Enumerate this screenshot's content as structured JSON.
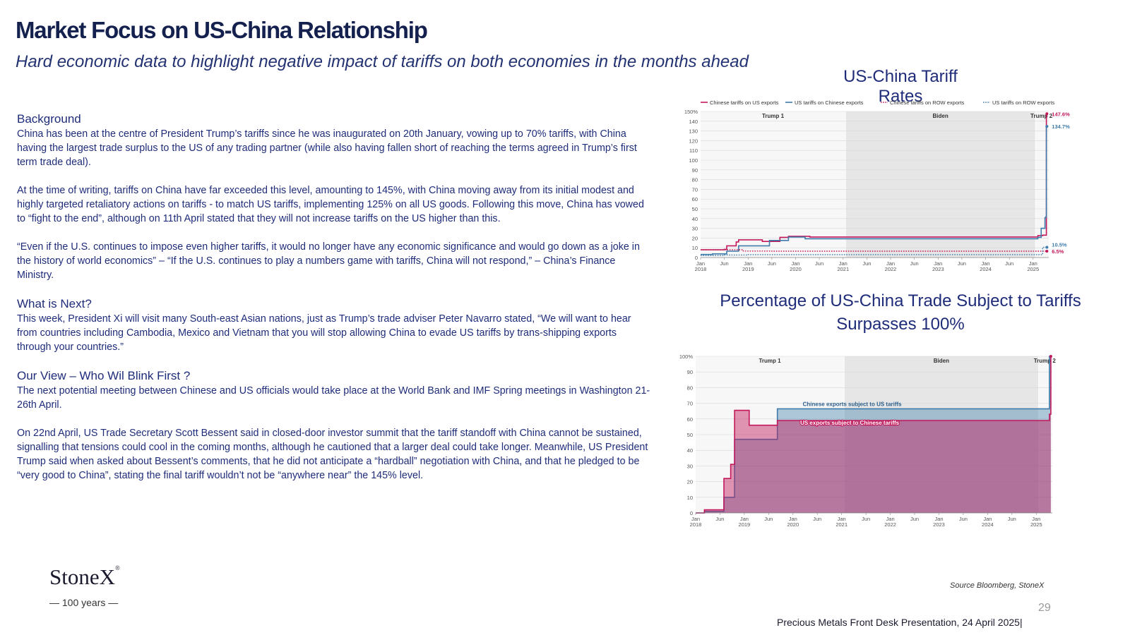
{
  "title": "Market Focus on US-China Relationship",
  "subtitle": "Hard economic data to highlight negative impact of tariffs on both economies in the months ahead",
  "sections": {
    "background_head": "Background",
    "background_p1": "China has been at the centre of President Trump’s tariffs since he was inaugurated on 20th January, vowing up to 70% tariffs, with China having the largest trade surplus to the US of any trading partner (while also having fallen short of reaching the terms agreed in Trump’s first term trade deal).",
    "background_p2": "At the time of writing, tariffs on China have far exceeded this level, amounting to 145%, with China moving away from its initial modest and highly targeted retaliatory actions on tariffs -  to match US tariffs, implementing 125% on all US goods. Following this move, China has vowed to “fight to the end”, although on 11th April stated that they will not increase tariffs on the US  higher than this.",
    "background_p3": "“Even if the U.S. continues to impose even higher tariffs, it would no longer have any economic significance and would go down as a joke in the history of world economics” – “If the U.S. continues to play a numbers game with tariffs, China will not respond,” – China’s Finance Ministry.",
    "next_head": "What is Next?",
    "next_p1": "This week, President Xi will visit many South-east Asian nations, just as Trump’s trade adviser Peter Navarro stated, “We will want to hear from countries including Cambodia, Mexico and Vietnam that you will stop allowing China to evade US tariffs by trans-shipping exports through your countries.”",
    "view_head": "Our View – Who Wil Blink First ?",
    "view_p1": "The next potential meeting between Chinese and US officials would take place at the World Bank and IMF Spring meetings in Washington 21-26th April.",
    "view_p2": "On 22nd April, US Trade Secretary Scott Bessent said in closed-door investor summit that the tariff standoff with China cannot be sustained, signalling that tensions could cool in the coming months, although he cautioned that a larger deal could take longer. Meanwhile, US President Trump said when asked about Bessent’s comments, that he did not anticipate a “hardball” negotiation with China, and that he pledged to be “very good to China”, stating the final tariff wouldn’t not be “anywhere near” the 145% level."
  },
  "chart1_title": "US-China Tariff Rates",
  "chart2_title": "Percentage of US-China Trade Subject to Tariffs Surpasses 100%",
  "logo": {
    "name": "StoneX",
    "mark": "®",
    "years": "— 100 years —"
  },
  "source": "Source Bloomberg, StoneX",
  "page_number": "29",
  "footer": "Precious Metals Front Desk Presentation, 24 April 2025|",
  "colors": {
    "china": "#c2185b",
    "us": "#3f7cab",
    "navy": "#1f2c7a",
    "shade": "#e6e6e6"
  },
  "chart_data": [
    {
      "type": "line",
      "x_ticks": [
        "Jan 2018",
        "Jun",
        "Jan 2019",
        "Jun",
        "Jan 2020",
        "Jun",
        "Jan 2021",
        "Jun",
        "Jan 2022",
        "Jun",
        "Jan 2023",
        "Jun",
        "Jan 2024",
        "Jun",
        "Jan 2025"
      ],
      "y_ticks": [
        "0",
        "10",
        "20",
        "30",
        "40",
        "50",
        "60",
        "70",
        "80",
        "90",
        "100",
        "110",
        "120",
        "130",
        "140",
        "150%"
      ],
      "ylim": [
        0,
        150
      ],
      "periods": [
        {
          "label": "Trump 1",
          "start": 2018.0,
          "end": 2021.05,
          "shaded": false
        },
        {
          "label": "Biden",
          "start": 2021.05,
          "end": 2025.05,
          "shaded": true
        },
        {
          "label": "Trump 2",
          "start": 2025.05,
          "end": 2025.3,
          "shaded": false
        }
      ],
      "end_labels": [
        {
          "text": "147.6%",
          "value": 147.6,
          "color": "#c2185b"
        },
        {
          "text": "134.7%",
          "value": 134.7,
          "color": "#3f7cab"
        },
        {
          "text": "10.5%",
          "value": 10.5,
          "color": "#3f7cab"
        },
        {
          "text": "6.5%",
          "value": 6.5,
          "color": "#c2185b"
        }
      ],
      "series": [
        {
          "name": "Chinese tariffs on US exports",
          "style": "solid",
          "color": "#c2185b",
          "x": [
            2018.0,
            2018.25,
            2018.5,
            2018.55,
            2018.65,
            2018.75,
            2018.8,
            2019.0,
            2019.3,
            2019.45,
            2019.67,
            2019.85,
            2020.1,
            2020.3,
            2025.05,
            2025.1,
            2025.2,
            2025.27,
            2025.28,
            2025.3
          ],
          "y": [
            8.0,
            8.0,
            8.4,
            12.0,
            12.0,
            16.0,
            18.2,
            18.2,
            16.5,
            16.5,
            20.7,
            21.8,
            21.8,
            21.1,
            21.1,
            22.5,
            23.0,
            23.0,
            147.6,
            147.6
          ]
        },
        {
          "name": "US tariffs on Chinese exports",
          "style": "solid",
          "color": "#3f7cab",
          "x": [
            2018.0,
            2018.25,
            2018.5,
            2018.55,
            2018.72,
            2018.8,
            2019.0,
            2019.4,
            2019.45,
            2019.67,
            2019.85,
            2020.1,
            2020.2,
            2025.05,
            2025.1,
            2025.17,
            2025.2,
            2025.25,
            2025.27,
            2025.28,
            2025.3
          ],
          "y": [
            3.1,
            3.8,
            3.8,
            6.5,
            6.5,
            12.0,
            12.0,
            12.0,
            17.5,
            17.5,
            21.0,
            21.0,
            19.3,
            19.3,
            20.7,
            30.0,
            30.0,
            41.0,
            42.0,
            134.7,
            134.7
          ]
        },
        {
          "name": "Chinese tariffs on ROW exports",
          "style": "dotted",
          "color": "#c2185b",
          "x": [
            2018.0,
            2018.5,
            2018.9,
            2019.5,
            2020.0,
            2025.3
          ],
          "y": [
            8.0,
            8.0,
            6.7,
            6.5,
            6.5,
            6.5
          ]
        },
        {
          "name": "US tariffs on ROW exports",
          "style": "dotted",
          "color": "#3f7cab",
          "x": [
            2018.0,
            2018.3,
            2018.5,
            2019.0,
            2020.0,
            2025.0,
            2025.2,
            2025.3
          ],
          "y": [
            2.2,
            2.2,
            2.6,
            3.0,
            3.0,
            3.0,
            10.5,
            10.5
          ]
        }
      ]
    },
    {
      "type": "area",
      "x_ticks": [
        "Jan 2018",
        "Jun",
        "Jan 2019",
        "Jun",
        "Jan 2020",
        "Jun",
        "Jan 2021",
        "Jun",
        "Jan 2022",
        "Jun",
        "Jan 2023",
        "Jun",
        "Jan 2024",
        "Jun",
        "Jan 2025"
      ],
      "y_ticks": [
        "0",
        "10",
        "20",
        "30",
        "40",
        "50",
        "60",
        "70",
        "80",
        "90",
        "100%"
      ],
      "ylim": [
        0,
        100
      ],
      "periods": [
        {
          "label": "Trump 1",
          "start": 2018.0,
          "end": 2021.05,
          "shaded": false
        },
        {
          "label": "Biden",
          "start": 2021.05,
          "end": 2025.05,
          "shaded": true
        },
        {
          "label": "Trump 2",
          "start": 2025.05,
          "end": 2025.3,
          "shaded": false
        }
      ],
      "series": [
        {
          "name": "Chinese exports subject to US tariffs",
          "color": "#3f7cab",
          "x": [
            2018.0,
            2018.08,
            2018.18,
            2018.5,
            2018.58,
            2018.72,
            2018.8,
            2019.67,
            2019.68,
            2025.05,
            2025.1,
            2025.27,
            2025.3
          ],
          "y": [
            0,
            0,
            1,
            1,
            10,
            10,
            47,
            47,
            66.5,
            66.5,
            66.5,
            100,
            100
          ]
        },
        {
          "name": "US exports subject to Chinese tariffs",
          "color": "#c2185b",
          "x": [
            2018.0,
            2018.08,
            2018.18,
            2018.45,
            2018.5,
            2018.58,
            2018.65,
            2018.72,
            2018.8,
            2019.05,
            2019.1,
            2019.67,
            2019.68,
            2025.05,
            2025.1,
            2025.27,
            2025.3
          ],
          "y": [
            0,
            0,
            2,
            2,
            2,
            22,
            22,
            31,
            65.5,
            65.5,
            56,
            56,
            59,
            59,
            59,
            63,
            100
          ]
        }
      ]
    }
  ]
}
